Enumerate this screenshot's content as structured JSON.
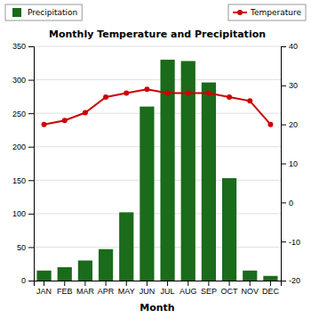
{
  "chart_data": {
    "type": "bar",
    "title": "Monthly Temperature and Precipitation",
    "xlabel": "Month",
    "categories": [
      "JAN",
      "FEB",
      "MAR",
      "APR",
      "MAY",
      "JUN",
      "JUL",
      "AUG",
      "SEP",
      "OCT",
      "NOV",
      "DEC"
    ],
    "series": [
      {
        "name": "Precipitation",
        "type": "bar",
        "color": "#1a6b1a",
        "values": [
          15,
          20,
          30,
          47,
          102,
          260,
          330,
          328,
          296,
          153,
          15,
          7
        ]
      },
      {
        "name": "Temperature",
        "type": "line",
        "color": "#cc0000",
        "marker": "circle",
        "axis": "y2",
        "values": [
          20,
          21,
          23,
          27,
          28,
          29,
          28,
          28,
          28,
          27,
          26,
          20
        ]
      }
    ],
    "ylim": [
      0,
      350
    ],
    "yticks": [
      0,
      50,
      100,
      150,
      200,
      250,
      300,
      350
    ],
    "y2lim": [
      -20,
      40
    ],
    "y2ticks": [
      -20,
      -10,
      0,
      10,
      20,
      30,
      40
    ],
    "grid": true,
    "legend": "top"
  }
}
